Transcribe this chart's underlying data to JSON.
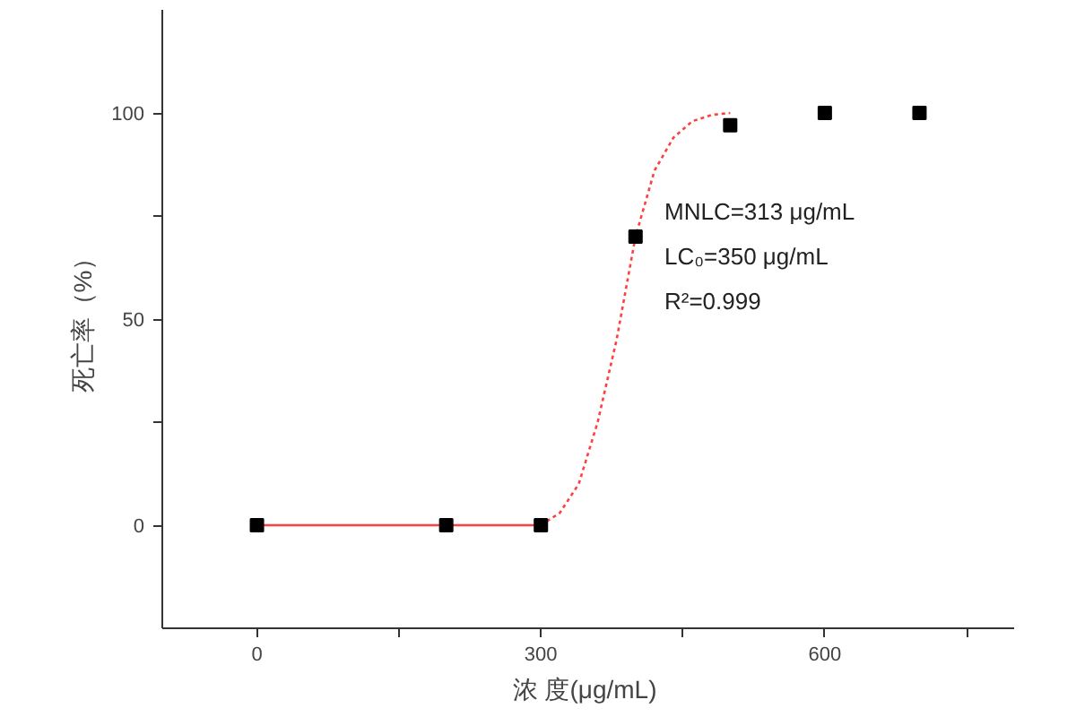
{
  "chart_data": {
    "type": "scatter",
    "xlabel": "浓  度(μg/mL)",
    "ylabel": "死亡率（%）",
    "xlim": [
      -100,
      800
    ],
    "xticks": [
      0,
      {
        "value": 150,
        "label": null
      },
      300,
      {
        "value": 450,
        "label": null
      },
      600,
      {
        "value": 750,
        "label": null
      }
    ],
    "ylim": [
      -25,
      125
    ],
    "yticks": [
      0,
      {
        "value": 25,
        "label": null
      },
      50,
      {
        "value": 75,
        "label": null
      },
      100
    ],
    "grid": false,
    "marker": "square",
    "series": [
      {
        "type": "line",
        "color": "#ff4040",
        "line_style": "solid",
        "marker": "none",
        "x": [
          0,
          300
        ],
        "values": [
          0,
          0
        ]
      },
      {
        "type": "line",
        "color": "#ff4040",
        "line_style": "dotted",
        "marker": "none",
        "x": [
          300,
          320,
          340,
          360,
          380,
          400,
          420,
          440,
          460,
          480,
          500
        ],
        "values": [
          0,
          3,
          10,
          25,
          45,
          70,
          86,
          94,
          98,
          99.5,
          100
        ]
      },
      {
        "color": "#000000",
        "x": [
          0,
          200,
          300,
          400,
          500,
          600,
          700
        ],
        "values": [
          0,
          0,
          0,
          70,
          97,
          100,
          100
        ]
      }
    ],
    "annotations": [
      "MNLC=313 μg/mL",
      "LC₀=350 μg/mL",
      "R²=0.999"
    ]
  }
}
